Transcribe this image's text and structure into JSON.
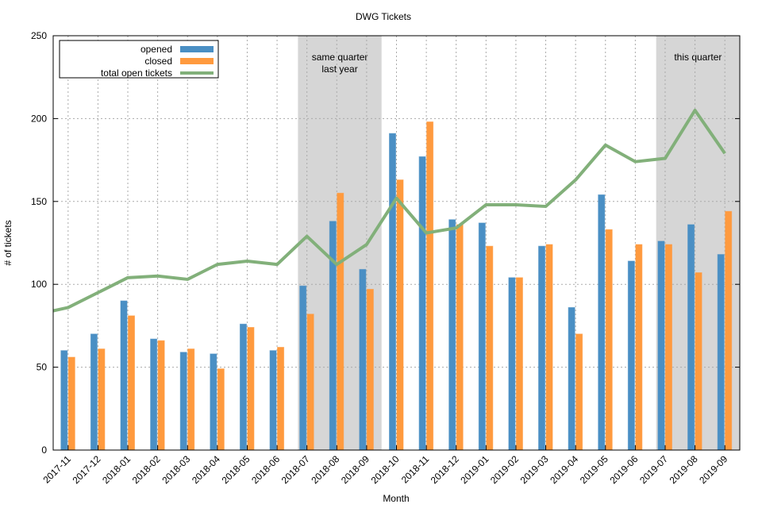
{
  "chart_data": {
    "type": "bar",
    "title": "DWG Tickets",
    "xlabel": "Month",
    "ylabel": "# of tickets",
    "ylim": [
      0,
      250
    ],
    "yticks": [
      0,
      50,
      100,
      150,
      200,
      250
    ],
    "grid": true,
    "legend_placement": "top-left",
    "categories": [
      "2017-11",
      "2017-12",
      "2018-01",
      "2018-02",
      "2018-03",
      "2018-04",
      "2018-05",
      "2018-06",
      "2018-07",
      "2018-08",
      "2018-09",
      "2018-10",
      "2018-11",
      "2018-12",
      "2019-01",
      "2019-02",
      "2019-03",
      "2019-04",
      "2019-05",
      "2019-06",
      "2019-07",
      "2019-08",
      "2019-09"
    ],
    "series": [
      {
        "name": "opened",
        "type": "bar",
        "color": "#4a8fc4",
        "values": [
          60,
          70,
          90,
          67,
          59,
          58,
          76,
          60,
          99,
          138,
          109,
          191,
          177,
          139,
          137,
          104,
          123,
          86,
          154,
          114,
          126,
          136,
          118
        ]
      },
      {
        "name": "closed",
        "type": "bar",
        "color": "#ff9a3e",
        "values": [
          56,
          61,
          81,
          66,
          61,
          49,
          74,
          62,
          82,
          155,
          97,
          163,
          198,
          136,
          123,
          104,
          124,
          70,
          133,
          124,
          124,
          107,
          144
        ]
      },
      {
        "name": "total open tickets",
        "type": "line",
        "color": "#82b07a",
        "values": [
          86,
          95,
          104,
          105,
          103,
          112,
          114,
          112,
          129,
          112,
          124,
          152,
          131,
          134,
          148,
          148,
          147,
          163,
          184,
          174,
          176,
          205,
          179
        ]
      }
    ],
    "line_prior_value": 82,
    "highlights": [
      {
        "label": "same quarter last year",
        "label_lines": [
          "same quarter",
          "last year"
        ],
        "from": "2018-07",
        "to": "2018-09"
      },
      {
        "label": "this quarter",
        "label_lines": [
          "this quarter"
        ],
        "from": "2019-07",
        "to": "2019-09"
      }
    ]
  }
}
